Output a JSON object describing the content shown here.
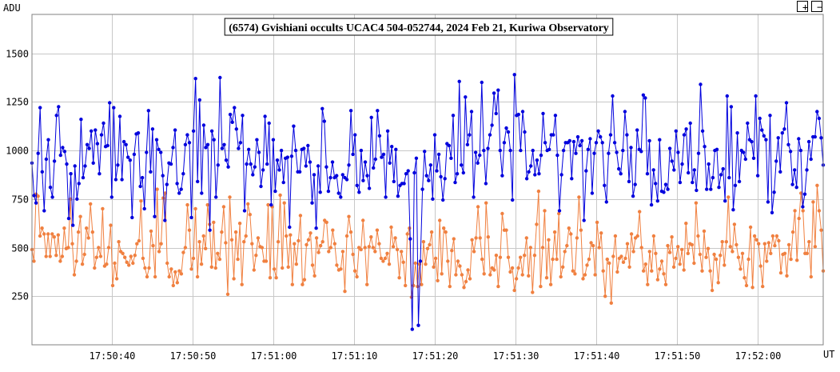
{
  "controls": {
    "zoom_in": "+",
    "zoom_out": "−"
  },
  "colors": {
    "target": "#0000dd",
    "comparison": "#f08040",
    "grid": "#c8c8c8",
    "frame": "#808080"
  },
  "chart_data": {
    "type": "line",
    "title": "(6574) Gvishiani occults UCAC4 504-052744, 2024 Feb 21, Kuriwa Observatory",
    "ylabel": "ADU",
    "xlabel": "UT",
    "ylim": [
      0,
      1700
    ],
    "y_ticks": [
      250,
      500,
      750,
      1000,
      1250,
      1500
    ],
    "x_range": [
      "17:50:30.1",
      "17:52:08.1"
    ],
    "x_ticks": [
      "17:50:40",
      "17:50:50",
      "17:51:00",
      "17:51:10",
      "17:51:20",
      "17:51:30",
      "17:51:40",
      "17:51:50",
      "17:52:00"
    ],
    "grid": true,
    "series": [
      {
        "name": "",
        "color": "#0000dd",
        "values": [
          935,
          768,
          730,
          985,
          1220,
          890,
          690,
          955,
          1055,
          810,
          760,
          945,
          1180,
          1225,
          975,
          1015,
          995,
          930,
          650,
          880,
          615,
          920,
          750,
          830,
          1160,
          860,
          920,
          1030,
          1010,
          1100,
          935,
          1105,
          1035,
          880,
          1080,
          1140,
          1020,
          1025,
          1245,
          760,
          1220,
          850,
          925,
          1175,
          850,
          1045,
          1030,
          965,
          950,
          655,
          980,
          1085,
          1090,
          815,
          860,
          700,
          990,
          1205,
          890,
          1110,
          660,
          1055,
          1005,
          990,
          870,
          640,
          825,
          935,
          930,
          1015,
          1105,
          830,
          780,
          800,
          880,
          1030,
          1080,
          1040,
          655,
          1100,
          1370,
          840,
          1260,
          780,
          1130,
          1015,
          1030,
          590,
          1100,
          1055,
          760,
          925,
          1375,
          1010,
          1030,
          950,
          915,
          1185,
          1145,
          1220,
          1110,
          1010,
          1040,
          1180,
          690,
          930,
          1005,
          930,
          875,
          915,
          1055,
          990,
          815,
          900,
          1175,
          930,
          1140,
          720,
          1055,
          790,
          950,
          900,
          1000,
          835,
          960,
          965,
          605,
          970,
          1125,
          1000,
          890,
          890,
          1005,
          1010,
          920,
          1025,
          940,
          730,
          875,
          600,
          920,
          785,
          1215,
          1150,
          915,
          790,
          860,
          940,
          860,
          870,
          780,
          760,
          875,
          860,
          850,
          925,
          1205,
          980,
          1080,
          820,
          785,
          1000,
          845,
          940,
          870,
          805,
          1170,
          910,
          955,
          1205,
          1075,
          965,
          980,
          760,
          1100,
          935,
          1020,
          840,
          1005,
          765,
          820,
          830,
          830,
          880,
          895,
          545,
          80,
          885,
          960,
          100,
          430,
          800,
          995,
          870,
          845,
          925,
          750,
          1080,
          895,
          980,
          865,
          745,
          855,
          1035,
          1025,
          960,
          1180,
          835,
          880,
          1355,
          925,
          885,
          1275,
          1030,
          1080,
          1200,
          760,
          990,
          935,
          975,
          1350,
          1000,
          830,
          1010,
          1080,
          1130,
          1295,
          1190,
          1310,
          1000,
          870,
          1040,
          1115,
          1095,
          1000,
          745,
          1390,
          1180,
          1185,
          1000,
          1200,
          1095,
          855,
          890,
          920,
          1000,
          875,
          950,
          880,
          975,
          1190,
          1040,
          1000,
          1005,
          1080,
          1080,
          1180,
          975,
          690,
          875,
          1000,
          1040,
          1040,
          1050,
          855,
          1045,
          985,
          1070,
          1025,
          1050,
          640,
          895,
          1005,
          1060,
          780,
          985,
          1040,
          1100,
          1070,
          1040,
          820,
          735,
          985,
          1080,
          1280,
          1040,
          990,
          905,
          880,
          1000,
          1200,
          1080,
          840,
          1015,
          765,
          825,
          1105,
          1005,
          995,
          1285,
          1270,
          880,
          1050,
          720,
          900,
          830,
          740,
          1055,
          790,
          785,
          825,
          800,
          1010,
          945,
          900,
          1100,
          990,
          835,
          930,
          1080,
          1110,
          885,
          1140,
          835,
          900,
          795,
          985,
          1340,
          1100,
          1020,
          800,
          930,
          800,
          860,
          1000,
          1005,
          810,
          875,
          905,
          740,
          1280,
          860,
          1225,
          695,
          820,
          1090,
          840,
          1000,
          990,
          955,
          1140,
          1055,
          1045,
          960,
          1280,
          870,
          1165,
          1105,
          1075,
          1055,
          735,
          1180,
          680,
          785,
          945,
          1065,
          890,
          1090,
          1110,
          1245,
          1030,
          995,
          825,
          900,
          810,
          1060,
          1000,
          710,
          775,
          900,
          1045,
          955,
          1070,
          1070,
          1200,
          1165,
          1065,
          925
        ]
      },
      {
        "name": "",
        "color": "#f08040",
        "values": [
          490,
          430,
          775,
          765,
          560,
          600,
          570,
          455,
          570,
          455,
          570,
          555,
          460,
          565,
          430,
          455,
          600,
          495,
          500,
          750,
          520,
          360,
          430,
          580,
          660,
          415,
          465,
          600,
          550,
          725,
          580,
          395,
          450,
          500,
          455,
          700,
          405,
          415,
          500,
          615,
          305,
          420,
          340,
          530,
          480,
          470,
          450,
          425,
          410,
          455,
          420,
          460,
          520,
          535,
          740,
          445,
          395,
          350,
          395,
          585,
          510,
          350,
          800,
          480,
          520,
          755,
          780,
          420,
          350,
          390,
          305,
          375,
          320,
          380,
          365,
          475,
          500,
          720,
          590,
          390,
          445,
          700,
          350,
          530,
          415,
          560,
          495,
          720,
          620,
          400,
          630,
          395,
          470,
          440,
          580,
          710,
          525,
          260,
          760,
          540,
          340,
          580,
          440,
          625,
          310,
          530,
          560,
          725,
          670,
          520,
          385,
          460,
          550,
          505,
          500,
          430,
          430,
          720,
          345,
          710,
          390,
          345,
          530,
          770,
          395,
          730,
          560,
          400,
          565,
          310,
          520,
          415,
          535,
          665,
          310,
          335,
          515,
          540,
          575,
          410,
          355,
          550,
          475,
          510,
          530,
          640,
          630,
          480,
          500,
          590,
          520,
          410,
          385,
          390,
          480,
          275,
          560,
          660,
          580,
          465,
          380,
          350,
          500,
          490,
          640,
          500,
          310,
          505,
          555,
          500,
          480,
          590,
          520,
          445,
          430,
          445,
          470,
          415,
          605,
          505,
          550,
          490,
          345,
          480,
          425,
          305,
          570,
          600,
          245,
          305,
          420,
          300,
          415,
          310,
          530,
          415,
          495,
          515,
          580,
          400,
          445,
          330,
          640,
          365,
          600,
          580,
          430,
          300,
          485,
          545,
          360,
          430,
          405,
          360,
          295,
          325,
          385,
          340,
          540,
          480,
          550,
          710,
          550,
          440,
          365,
          730,
          555,
          360,
          395,
          385,
          460,
          300,
          450,
          675,
          590,
          590,
          450,
          375,
          395,
          280,
          340,
          395,
          450,
          360,
          460,
          550,
          355,
          500,
          270,
          460,
          620,
          790,
          300,
          500,
          690,
          345,
          540,
          310,
          440,
          580,
          440,
          675,
          350,
          400,
          480,
          510,
          600,
          570,
          380,
          365,
          550,
          760,
          590,
          340,
          360,
          410,
          440,
          525,
          510,
          360,
          630,
          500,
          575,
          380,
          250,
          440,
          420,
          215,
          455,
          560,
          375,
          445,
          455,
          425,
          445,
          520,
          400,
          570,
          480,
          550,
          560,
          685,
          500,
          380,
          415,
          310,
          480,
          380,
          560,
          470,
          335,
          390,
          430,
          365,
          310,
          510,
          475,
          555,
          400,
          445,
          505,
          415,
          490,
          385,
          625,
          470,
          520,
          515,
          420,
          730,
          560,
          465,
          380,
          585,
          450,
          495,
          380,
          280,
          465,
          440,
          320,
          460,
          530,
          410,
          530,
          760,
          505,
          480,
          620,
          515,
          450,
          390,
          470,
          345,
          305,
          440,
          605,
          295,
          560,
          540,
          520,
          405,
          300,
          520,
          430,
          525,
          470,
          560,
          510,
          560,
          535,
          370,
          465,
          470,
          355,
          515,
          440,
          580,
          690,
          435,
          650,
          780,
          690,
          470,
          470,
          530,
          350,
          735,
          505,
          820,
          690,
          590,
          380
        ]
      }
    ]
  }
}
